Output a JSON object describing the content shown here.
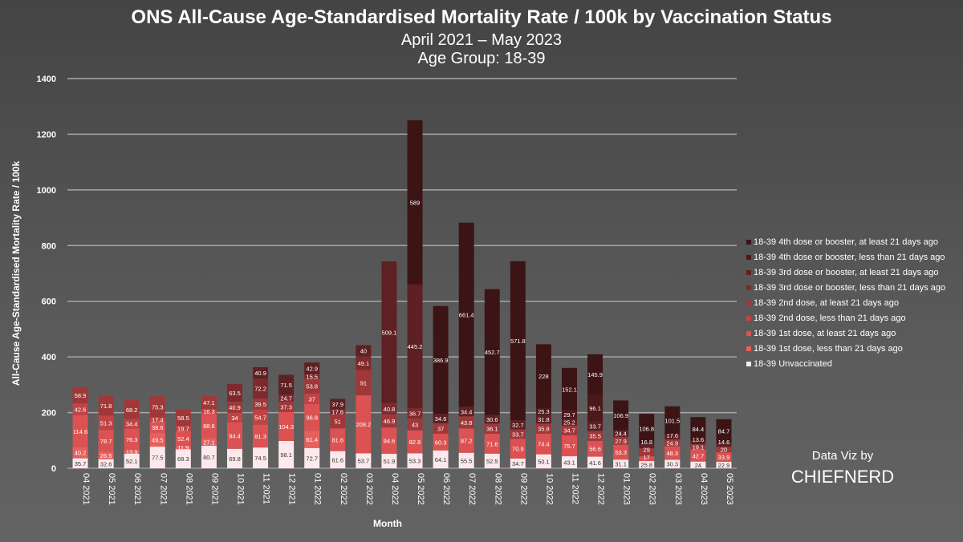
{
  "chart_data": {
    "type": "bar",
    "stacked": true,
    "title": "ONS All-Cause Age-Standardised Mortality Rate / 100k by Vaccination Status",
    "subtitle": "April 2021 – May 2023",
    "subtitle2": "Age Group: 18-39",
    "xlabel": "Month",
    "ylabel": "All-Cause Age-Standardised Mortality Rate / 100k",
    "ylim": [
      0,
      1400
    ],
    "yticks": [
      0,
      200,
      400,
      600,
      800,
      1000,
      1200,
      1400
    ],
    "grid": true,
    "legend_position": "right",
    "categories": [
      "04 2021",
      "05 2021",
      "06 2021",
      "07 2021",
      "08 2021",
      "09 2021",
      "10 2021",
      "11 2021",
      "12 2021",
      "01 2022",
      "02 2022",
      "03 2022",
      "04 2022",
      "05 2022",
      "06 2022",
      "07 2022",
      "08 2022",
      "09 2022",
      "10 2022",
      "11 2022",
      "12 2022",
      "01 2023",
      "02 2023",
      "03 2023",
      "04 2023",
      "05 2023"
    ],
    "series": [
      {
        "name": "18-39 Unvaccinated",
        "color": "#fde9ec",
        "values": [
          35.7,
          32.6,
          52.1,
          77.5,
          68.3,
          80.7,
          69.8,
          74.5,
          98.1,
          72.7,
          61.6,
          53.7,
          51.9,
          53.3,
          64.1,
          55.5,
          52.5,
          34.7,
          50.1,
          43.1,
          41.6,
          31.1,
          25.8,
          30.3,
          24,
          22.9
        ]
      },
      {
        "name": "18-39 1st dose, less than 21 days ago",
        "color": "#e8605e",
        "values": [
          40.2,
          26.5,
          13.9,
          49.5,
          11.9,
          27.1,
          null,
          null,
          null,
          61.4,
          null,
          null,
          null,
          null,
          null,
          null,
          null,
          null,
          null,
          null,
          null,
          null,
          null,
          null,
          null,
          null
        ]
      },
      {
        "name": "18-39 1st dose, at least 21 days ago",
        "color": "#dc5252",
        "values": [
          114.6,
          78.7,
          76.3,
          38.6,
          52.4,
          88.6,
          94.4,
          81.3,
          104.3,
          96.8,
          81.6,
          208.2,
          94.6,
          82.8,
          60.3,
          87.2,
          71.6,
          70.9,
          74.4,
          75.7,
          56.6,
          53.3,
          17,
          48.3,
          42.7,
          33.9
        ]
      },
      {
        "name": "18-39 2nd dose, less than 21 days ago",
        "color": "#c04446",
        "values": [
          42.6,
          51.3,
          34.4,
          17.4,
          19.7,
          16.3,
          34,
          54.7,
          null,
          37,
          null,
          null,
          null,
          null,
          null,
          null,
          null,
          null,
          null,
          null,
          null,
          null,
          null,
          null,
          null,
          null
        ]
      },
      {
        "name": "18-39 2nd dose, at least 21 days ago",
        "color": "#a0383a",
        "values": [
          58.9,
          71.8,
          68.2,
          75.3,
          58.5,
          47.1,
          40.9,
          39.5,
          37.3,
          53.8,
          51,
          91,
          46.9,
          43,
          37,
          43.8,
          36.1,
          33.7,
          35.8,
          34.7,
          35.5,
          27.9,
          29,
          24.9,
          19.1,
          20
        ]
      },
      {
        "name": "18-39 3rd dose or booster, less than 21 days ago",
        "color": "#7e2a2c",
        "values": [
          null,
          null,
          null,
          null,
          null,
          null,
          63.5,
          72.2,
          24.7,
          15.5,
          17.6,
          49.1,
          40.8,
          36.7,
          null,
          null,
          null,
          null,
          null,
          null,
          null,
          null,
          null,
          null,
          null,
          null
        ]
      },
      {
        "name": "18-39 3rd dose or booster, at least 21 days ago",
        "color": "#5e2022",
        "values": [
          null,
          null,
          null,
          null,
          null,
          null,
          null,
          40.9,
          71.5,
          42.9,
          37.9,
          40,
          509.1,
          445.2,
          34.6,
          34.4,
          30.6,
          32.7,
          31.8,
          25.2,
          33.7,
          24.4,
          16.8,
          17.6,
          13.6,
          14.6
        ]
      },
      {
        "name": "18-39 4th dose or booster, less than 21 days ago",
        "color": "#4c1819",
        "values": [
          null,
          null,
          null,
          null,
          null,
          null,
          null,
          null,
          null,
          null,
          null,
          null,
          null,
          null,
          null,
          null,
          null,
          null,
          25.3,
          29.7,
          96.1,
          null,
          null,
          null,
          null,
          null
        ]
      },
      {
        "name": "18-39 4th dose or booster, at least 21 days ago",
        "color": "#3c1416",
        "values": [
          null,
          null,
          null,
          null,
          null,
          null,
          null,
          null,
          null,
          null,
          null,
          null,
          null,
          589,
          386.9,
          661.4,
          452.7,
          571.8,
          228,
          152.1,
          145.9,
          106.9,
          106.8,
          101.5,
          84.4,
          84.7
        ]
      }
    ]
  },
  "credit": {
    "line1": "Data Viz by",
    "line2": "CHIEFNERD"
  }
}
